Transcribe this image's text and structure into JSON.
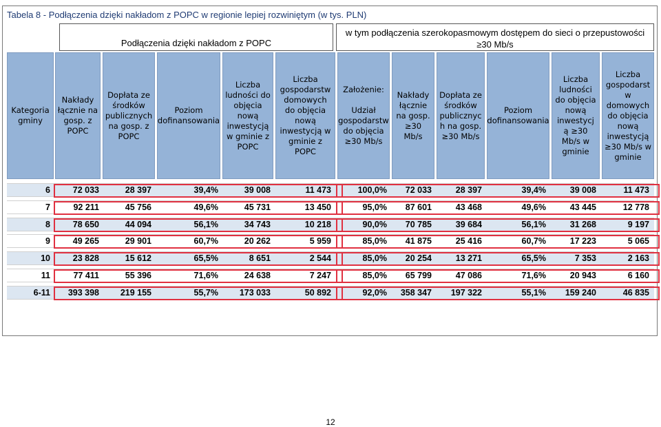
{
  "caption": "Tabela 8 - Podłączenia dzięki nakładom z POPC w regionie lepiej rozwiniętym (w tys. PLN)",
  "group_left": "Podłączenia dzięki nakładom z POPC",
  "group_right": "w tym podłączenia szerokopasmowym dostępem do sieci o przepustowości\n≥30 Mb/s",
  "headers": [
    "Kategoria\ngminy",
    "Nakłady\nłącznie na\ngosp. z\nPOPC",
    "Dopłata ze\nśrodków\npublicznych\nna gosp. z\nPOPC",
    "Poziom\ndofinansowania",
    "Liczba\nludności do\nobjęcia\nnową\ninwestycją\nw gminie z\nPOPC",
    "Liczba\ngospodarstw\ndomowych\ndo objęcia\nnową\ninwestycją w\ngminie z\nPOPC",
    "Założenie:\n\nUdział\ngospodarstw\ndo objęcia\n≥30 Mb/s",
    "Nakłady\nłącznie\nna gosp.\n≥30\nMb/s",
    "Dopłata ze\nśrodków\npublicznyc\nh na gosp.\n≥30 Mb/s",
    "Poziom\ndofinansowania",
    "Liczba\nludności\ndo objęcia\nnową\ninwestycj\ną ≥30\nMb/s w\ngminie",
    "Liczba\ngospodarst\nw\ndomowych\ndo objęcia\nnową\ninwestycją\n≥30 Mb/s w\ngminie"
  ],
  "rows": [
    [
      "6",
      "72 033",
      "28 397",
      "39,4%",
      "39 008",
      "11 473",
      "100,0%",
      "72 033",
      "28 397",
      "39,4%",
      "39 008",
      "11 473"
    ],
    [
      "7",
      "92 211",
      "45 756",
      "49,6%",
      "45 731",
      "13 450",
      "95,0%",
      "87 601",
      "43 468",
      "49,6%",
      "43 445",
      "12 778"
    ],
    [
      "8",
      "78 650",
      "44 094",
      "56,1%",
      "34 743",
      "10 218",
      "90,0%",
      "70 785",
      "39 684",
      "56,1%",
      "31 268",
      "9 197"
    ],
    [
      "9",
      "49 265",
      "29 901",
      "60,7%",
      "20 262",
      "5 959",
      "85,0%",
      "41 875",
      "25 416",
      "60,7%",
      "17 223",
      "5 065"
    ],
    [
      "10",
      "23 828",
      "15 612",
      "65,5%",
      "8 651",
      "2 544",
      "85,0%",
      "20 254",
      "13 271",
      "65,5%",
      "7 353",
      "2 163"
    ],
    [
      "11",
      "77 411",
      "55 396",
      "71,6%",
      "24 638",
      "7 247",
      "85,0%",
      "65 799",
      "47 086",
      "71,6%",
      "20 943",
      "6 160"
    ],
    [
      "6-11",
      "393 398",
      "219 155",
      "55,7%",
      "173 033",
      "50 892",
      "92,0%",
      "358 347",
      "197 322",
      "55,1%",
      "159 240",
      "46 835"
    ]
  ],
  "colors": {
    "header_bg": "#95b3d7",
    "row_alt_bg": "#dce6f1",
    "highlight_border": "#e03040"
  },
  "page_number": "12"
}
